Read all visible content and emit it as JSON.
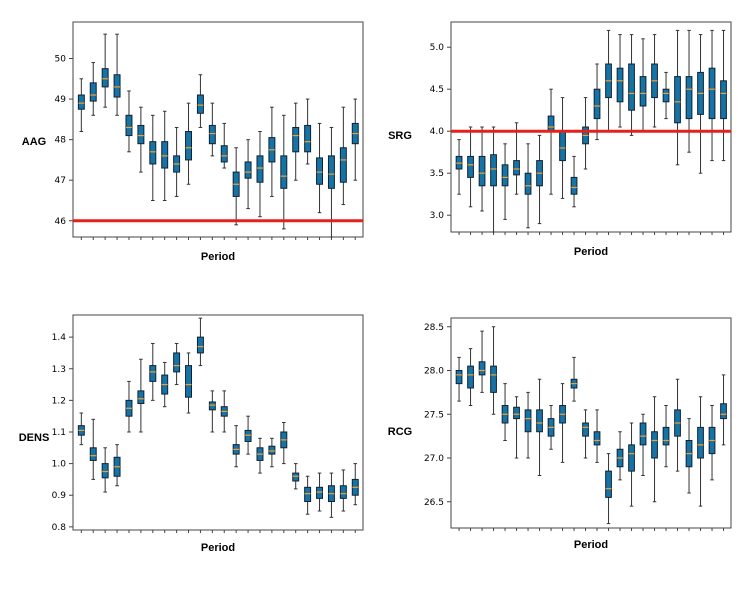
{
  "chart_data": [
    {
      "type": "box",
      "xlabel": "Period",
      "ylabel": "AAG",
      "ylim": [
        45.6,
        50.9
      ],
      "yticks": [
        "46",
        "47",
        "48",
        "49",
        "50"
      ],
      "reference_line": 46.0,
      "reference_color": "#e8201a",
      "box_color": "#1673a6",
      "median_color": "#f0a030",
      "boxes": [
        {
          "min": 48.2,
          "q1": 48.75,
          "median": 48.9,
          "q3": 49.1,
          "max": 49.5
        },
        {
          "min": 48.6,
          "q1": 48.95,
          "median": 49.1,
          "q3": 49.4,
          "max": 49.9
        },
        {
          "min": 48.8,
          "q1": 49.3,
          "median": 49.5,
          "q3": 49.75,
          "max": 50.6
        },
        {
          "min": 48.6,
          "q1": 49.05,
          "median": 49.3,
          "q3": 49.6,
          "max": 50.6
        },
        {
          "min": 47.7,
          "q1": 48.1,
          "median": 48.3,
          "q3": 48.6,
          "max": 49.2
        },
        {
          "min": 47.2,
          "q1": 47.9,
          "median": 48.1,
          "q3": 48.35,
          "max": 48.8
        },
        {
          "min": 46.5,
          "q1": 47.4,
          "median": 47.7,
          "q3": 47.95,
          "max": 48.6
        },
        {
          "min": 46.5,
          "q1": 47.3,
          "median": 47.6,
          "q3": 47.95,
          "max": 48.7
        },
        {
          "min": 46.6,
          "q1": 47.2,
          "median": 47.4,
          "q3": 47.6,
          "max": 48.3
        },
        {
          "min": 46.9,
          "q1": 47.5,
          "median": 47.8,
          "q3": 48.2,
          "max": 48.9
        },
        {
          "min": 48.3,
          "q1": 48.65,
          "median": 48.85,
          "q3": 49.1,
          "max": 49.6
        },
        {
          "min": 47.6,
          "q1": 47.9,
          "median": 48.15,
          "q3": 48.35,
          "max": 48.9
        },
        {
          "min": 47.3,
          "q1": 47.45,
          "median": 47.6,
          "q3": 47.85,
          "max": 48.4
        },
        {
          "min": 45.9,
          "q1": 46.6,
          "median": 46.9,
          "q3": 47.2,
          "max": 47.8
        },
        {
          "min": 46.3,
          "q1": 47.05,
          "median": 47.2,
          "q3": 47.45,
          "max": 48.0
        },
        {
          "min": 46.1,
          "q1": 46.95,
          "median": 47.3,
          "q3": 47.6,
          "max": 48.2
        },
        {
          "min": 46.6,
          "q1": 47.45,
          "median": 47.75,
          "q3": 48.05,
          "max": 48.8
        },
        {
          "min": 45.8,
          "q1": 46.8,
          "median": 47.1,
          "q3": 47.6,
          "max": 48.6
        },
        {
          "min": 47.0,
          "q1": 47.7,
          "median": 48.1,
          "q3": 48.3,
          "max": 48.9
        },
        {
          "min": 47.4,
          "q1": 47.7,
          "median": 47.95,
          "q3": 48.35,
          "max": 49.0
        },
        {
          "min": 46.2,
          "q1": 46.9,
          "median": 47.2,
          "q3": 47.55,
          "max": 48.4
        },
        {
          "min": 45.6,
          "q1": 46.8,
          "median": 47.15,
          "q3": 47.6,
          "max": 48.3
        },
        {
          "min": 46.4,
          "q1": 46.95,
          "median": 47.5,
          "q3": 47.8,
          "max": 48.8
        },
        {
          "min": 47.0,
          "q1": 47.9,
          "median": 48.15,
          "q3": 48.4,
          "max": 49.0
        }
      ]
    },
    {
      "type": "box",
      "xlabel": "Period",
      "ylabel": "SRG",
      "ylim": [
        2.8,
        5.3
      ],
      "yticks": [
        "3.0",
        "3.5",
        "4.0",
        "4.5",
        "5.0"
      ],
      "reference_line": 4.0,
      "reference_color": "#e8201a",
      "box_color": "#1673a6",
      "median_color": "#f0a030",
      "boxes": [
        {
          "min": 3.25,
          "q1": 3.55,
          "median": 3.62,
          "q3": 3.7,
          "max": 3.9
        },
        {
          "min": 3.1,
          "q1": 3.45,
          "median": 3.6,
          "q3": 3.7,
          "max": 4.05
        },
        {
          "min": 3.05,
          "q1": 3.35,
          "median": 3.5,
          "q3": 3.7,
          "max": 4.05
        },
        {
          "min": 2.8,
          "q1": 3.35,
          "median": 3.55,
          "q3": 3.72,
          "max": 4.05
        },
        {
          "min": 2.95,
          "q1": 3.35,
          "median": 3.45,
          "q3": 3.6,
          "max": 3.85
        },
        {
          "min": 3.25,
          "q1": 3.48,
          "median": 3.55,
          "q3": 3.65,
          "max": 4.1
        },
        {
          "min": 2.85,
          "q1": 3.25,
          "median": 3.35,
          "q3": 3.5,
          "max": 3.85
        },
        {
          "min": 2.9,
          "q1": 3.35,
          "median": 3.5,
          "q3": 3.65,
          "max": 3.95
        },
        {
          "min": 3.25,
          "q1": 4.0,
          "median": 4.05,
          "q3": 4.18,
          "max": 4.5
        },
        {
          "min": 3.2,
          "q1": 3.65,
          "median": 3.8,
          "q3": 4.0,
          "max": 4.4
        },
        {
          "min": 3.1,
          "q1": 3.25,
          "median": 3.33,
          "q3": 3.45,
          "max": 3.7
        },
        {
          "min": 3.55,
          "q1": 3.85,
          "median": 3.95,
          "q3": 4.05,
          "max": 4.4
        },
        {
          "min": 3.9,
          "q1": 4.15,
          "median": 4.3,
          "q3": 4.5,
          "max": 4.8
        },
        {
          "min": 4.0,
          "q1": 4.4,
          "median": 4.6,
          "q3": 4.8,
          "max": 5.2
        },
        {
          "min": 4.05,
          "q1": 4.35,
          "median": 4.6,
          "q3": 4.75,
          "max": 5.15
        },
        {
          "min": 3.95,
          "q1": 4.25,
          "median": 4.45,
          "q3": 4.8,
          "max": 5.15
        },
        {
          "min": 4.0,
          "q1": 4.3,
          "median": 4.45,
          "q3": 4.65,
          "max": 5.1
        },
        {
          "min": 4.05,
          "q1": 4.4,
          "median": 4.6,
          "q3": 4.8,
          "max": 5.15
        },
        {
          "min": 4.15,
          "q1": 4.35,
          "median": 4.45,
          "q3": 4.5,
          "max": 4.7
        },
        {
          "min": 3.6,
          "q1": 4.1,
          "median": 4.35,
          "q3": 4.65,
          "max": 5.2
        },
        {
          "min": 3.75,
          "q1": 4.15,
          "median": 4.5,
          "q3": 4.65,
          "max": 5.2
        },
        {
          "min": 3.5,
          "q1": 4.2,
          "median": 4.45,
          "q3": 4.7,
          "max": 5.15
        },
        {
          "min": 3.65,
          "q1": 4.15,
          "median": 4.5,
          "q3": 4.75,
          "max": 5.2
        },
        {
          "min": 3.65,
          "q1": 4.15,
          "median": 4.45,
          "q3": 4.6,
          "max": 5.2
        }
      ]
    },
    {
      "type": "box",
      "xlabel": "Period",
      "ylabel": "DENS",
      "ylim": [
        0.79,
        1.47
      ],
      "yticks": [
        "0.8",
        "0.9",
        "1.0",
        "1.1",
        "1.2",
        "1.3",
        "1.4"
      ],
      "box_color": "#1673a6",
      "median_color": "#f0a030",
      "boxes": [
        {
          "min": 1.06,
          "q1": 1.09,
          "median": 1.105,
          "q3": 1.12,
          "max": 1.16
        },
        {
          "min": 0.95,
          "q1": 1.01,
          "median": 1.025,
          "q3": 1.05,
          "max": 1.14
        },
        {
          "min": 0.91,
          "q1": 0.955,
          "median": 0.975,
          "q3": 1.0,
          "max": 1.05
        },
        {
          "min": 0.93,
          "q1": 0.96,
          "median": 0.99,
          "q3": 1.02,
          "max": 1.06
        },
        {
          "min": 1.1,
          "q1": 1.15,
          "median": 1.175,
          "q3": 1.2,
          "max": 1.26
        },
        {
          "min": 1.1,
          "q1": 1.19,
          "median": 1.205,
          "q3": 1.23,
          "max": 1.33
        },
        {
          "min": 1.2,
          "q1": 1.26,
          "median": 1.29,
          "q3": 1.31,
          "max": 1.38
        },
        {
          "min": 1.18,
          "q1": 1.22,
          "median": 1.25,
          "q3": 1.28,
          "max": 1.32
        },
        {
          "min": 1.25,
          "q1": 1.29,
          "median": 1.31,
          "q3": 1.35,
          "max": 1.38
        },
        {
          "min": 1.16,
          "q1": 1.21,
          "median": 1.25,
          "q3": 1.31,
          "max": 1.35
        },
        {
          "min": 1.31,
          "q1": 1.35,
          "median": 1.37,
          "q3": 1.4,
          "max": 1.46
        },
        {
          "min": 1.1,
          "q1": 1.17,
          "median": 1.185,
          "q3": 1.195,
          "max": 1.23
        },
        {
          "min": 1.1,
          "q1": 1.15,
          "median": 1.165,
          "q3": 1.18,
          "max": 1.23
        },
        {
          "min": 0.99,
          "q1": 1.03,
          "median": 1.045,
          "q3": 1.06,
          "max": 1.12
        },
        {
          "min": 1.03,
          "q1": 1.07,
          "median": 1.09,
          "q3": 1.105,
          "max": 1.15
        },
        {
          "min": 0.97,
          "q1": 1.01,
          "median": 1.03,
          "q3": 1.05,
          "max": 1.08
        },
        {
          "min": 0.99,
          "q1": 1.03,
          "median": 1.04,
          "q3": 1.055,
          "max": 1.08
        },
        {
          "min": 1.0,
          "q1": 1.05,
          "median": 1.075,
          "q3": 1.1,
          "max": 1.13
        },
        {
          "min": 0.92,
          "q1": 0.945,
          "median": 0.96,
          "q3": 0.97,
          "max": 1.0
        },
        {
          "min": 0.84,
          "q1": 0.88,
          "median": 0.905,
          "q3": 0.925,
          "max": 0.96
        },
        {
          "min": 0.85,
          "q1": 0.89,
          "median": 0.91,
          "q3": 0.925,
          "max": 0.97
        },
        {
          "min": 0.83,
          "q1": 0.88,
          "median": 0.905,
          "q3": 0.93,
          "max": 0.97
        },
        {
          "min": 0.85,
          "q1": 0.89,
          "median": 0.905,
          "q3": 0.93,
          "max": 0.98
        },
        {
          "min": 0.87,
          "q1": 0.9,
          "median": 0.925,
          "q3": 0.95,
          "max": 1.0
        }
      ]
    },
    {
      "type": "box",
      "xlabel": "Period",
      "ylabel": "RCG",
      "ylim": [
        26.2,
        28.6
      ],
      "yticks": [
        "26.5",
        "27.0",
        "27.5",
        "28.0",
        "28.5"
      ],
      "box_color": "#1673a6",
      "median_color": "#f0a030",
      "boxes": [
        {
          "min": 27.65,
          "q1": 27.85,
          "median": 27.95,
          "q3": 28.0,
          "max": 28.15
        },
        {
          "min": 27.6,
          "q1": 27.8,
          "median": 27.95,
          "q3": 28.05,
          "max": 28.25
        },
        {
          "min": 27.75,
          "q1": 27.95,
          "median": 28.0,
          "q3": 28.1,
          "max": 28.45
        },
        {
          "min": 27.5,
          "q1": 27.75,
          "median": 27.95,
          "q3": 28.05,
          "max": 28.5
        },
        {
          "min": 27.2,
          "q1": 27.4,
          "median": 27.5,
          "q3": 27.6,
          "max": 27.85
        },
        {
          "min": 27.0,
          "q1": 27.45,
          "median": 27.5,
          "q3": 27.58,
          "max": 27.7
        },
        {
          "min": 27.0,
          "q1": 27.3,
          "median": 27.45,
          "q3": 27.55,
          "max": 27.75
        },
        {
          "min": 26.8,
          "q1": 27.3,
          "median": 27.4,
          "q3": 27.55,
          "max": 27.9
        },
        {
          "min": 27.1,
          "q1": 27.25,
          "median": 27.35,
          "q3": 27.45,
          "max": 27.6
        },
        {
          "min": 26.95,
          "q1": 27.4,
          "median": 27.5,
          "q3": 27.6,
          "max": 27.85
        },
        {
          "min": 27.65,
          "q1": 27.8,
          "median": 27.85,
          "q3": 27.9,
          "max": 28.15
        },
        {
          "min": 27.0,
          "q1": 27.25,
          "median": 27.35,
          "q3": 27.4,
          "max": 27.55
        },
        {
          "min": 26.95,
          "q1": 27.15,
          "median": 27.2,
          "q3": 27.3,
          "max": 27.55
        },
        {
          "min": 26.25,
          "q1": 26.55,
          "median": 26.65,
          "q3": 26.85,
          "max": 27.05
        },
        {
          "min": 26.75,
          "q1": 26.9,
          "median": 27.0,
          "q3": 27.1,
          "max": 27.3
        },
        {
          "min": 26.45,
          "q1": 26.85,
          "median": 27.05,
          "q3": 27.15,
          "max": 27.4
        },
        {
          "min": 26.8,
          "q1": 27.15,
          "median": 27.25,
          "q3": 27.4,
          "max": 27.5
        },
        {
          "min": 26.5,
          "q1": 27.0,
          "median": 27.2,
          "q3": 27.3,
          "max": 27.7
        },
        {
          "min": 26.9,
          "q1": 27.15,
          "median": 27.2,
          "q3": 27.35,
          "max": 27.6
        },
        {
          "min": 26.85,
          "q1": 27.25,
          "median": 27.4,
          "q3": 27.55,
          "max": 27.9
        },
        {
          "min": 26.6,
          "q1": 26.9,
          "median": 27.05,
          "q3": 27.2,
          "max": 27.45
        },
        {
          "min": 26.45,
          "q1": 27.0,
          "median": 27.15,
          "q3": 27.35,
          "max": 27.7
        },
        {
          "min": 26.75,
          "q1": 27.05,
          "median": 27.2,
          "q3": 27.35,
          "max": 27.6
        },
        {
          "min": 27.15,
          "q1": 27.45,
          "median": 27.5,
          "q3": 27.62,
          "max": 27.95
        }
      ]
    }
  ]
}
